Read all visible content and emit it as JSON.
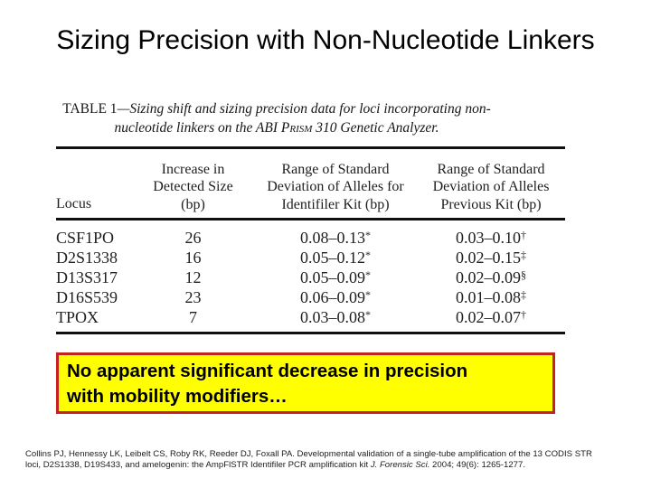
{
  "slide": {
    "title": "Sizing Precision with Non-Nucleotide Linkers"
  },
  "table": {
    "caption": {
      "label": "TABLE 1",
      "body_prefix": "—Sizing shift and sizing precision data for loci incorporating non-nucleotide linkers on the ABI ",
      "prism": "Prism",
      "body_suffix": " 310 Genetic Analyzer."
    },
    "columns": [
      {
        "lines": [
          "Locus",
          "",
          ""
        ]
      },
      {
        "lines": [
          "Increase in",
          "Detected Size",
          "(bp)"
        ]
      },
      {
        "lines": [
          "Range of Standard",
          "Deviation of Alleles for",
          "Identifiler Kit (bp)"
        ]
      },
      {
        "lines": [
          "Range of Standard",
          "Deviation of Alleles",
          "Previous Kit (bp)"
        ]
      }
    ],
    "rows": [
      {
        "locus": "CSF1PO",
        "increase": "26",
        "identifiler": {
          "value": "0.08–0.13",
          "sup": "*"
        },
        "previous": {
          "value": "0.03–0.10",
          "sup": "†"
        }
      },
      {
        "locus": "D2S1338",
        "increase": "16",
        "identifiler": {
          "value": "0.05–0.12",
          "sup": "*"
        },
        "previous": {
          "value": "0.02–0.15",
          "sup": "‡"
        }
      },
      {
        "locus": "D13S317",
        "increase": "12",
        "identifiler": {
          "value": "0.05–0.09",
          "sup": "*"
        },
        "previous": {
          "value": "0.02–0.09",
          "sup": "§"
        }
      },
      {
        "locus": "D16S539",
        "increase": "23",
        "identifiler": {
          "value": "0.06–0.09",
          "sup": "*"
        },
        "previous": {
          "value": "0.01–0.08",
          "sup": "‡"
        }
      },
      {
        "locus": "TPOX",
        "increase": "7",
        "identifiler": {
          "value": "0.03–0.08",
          "sup": "*"
        },
        "previous": {
          "value": "0.02–0.07",
          "sup": "†"
        }
      }
    ]
  },
  "callout": {
    "lines": [
      "No apparent significant decrease in precision",
      "with mobility modifiers…"
    ],
    "background_color": "#ffff00",
    "border_color": "#c42121"
  },
  "citation": {
    "line1": "Collins PJ, Hennessy LK, Leibelt CS, Roby RK, Reeder DJ, Foxall PA. Developmental validation of a single-tube amplification of the 13 CODIS STR",
    "line2_pre": "loci, D2S1338, D19S433, and amelogenin: the AmpFlSTR Identifiler PCR amplification kit ",
    "line2_italic": "J. Forensic Sci.",
    "line2_post": " 2004; 49(6): 1265-1277."
  }
}
